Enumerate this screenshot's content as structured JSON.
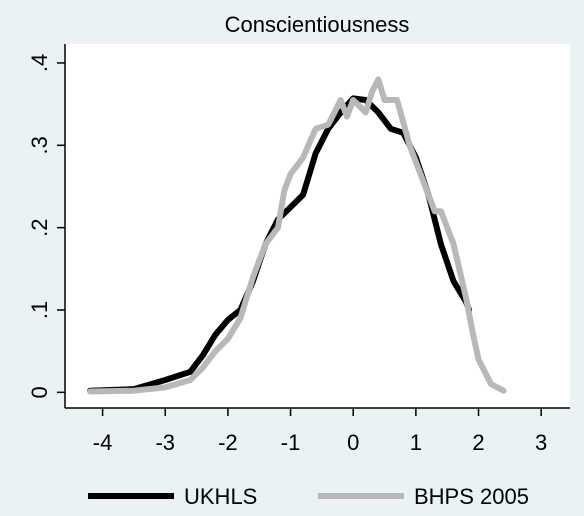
{
  "chart_data": {
    "type": "line",
    "title": "Conscientiousness",
    "series": [
      {
        "name": "UKHLS",
        "color": "#000000",
        "x": [
          -4.2,
          -3.5,
          -3,
          -2.6,
          -2.4,
          -2.2,
          -2,
          -1.8,
          -1.6,
          -1.4,
          -1.2,
          -1,
          -0.8,
          -0.6,
          -0.4,
          -0.2,
          0,
          0.2,
          0.4,
          0.6,
          0.8,
          1,
          1.2,
          1.4,
          1.6,
          1.8,
          1.85
        ],
        "values": [
          0.002,
          0.004,
          0.015,
          0.025,
          0.045,
          0.07,
          0.088,
          0.1,
          0.135,
          0.18,
          0.21,
          0.225,
          0.24,
          0.29,
          0.32,
          0.34,
          0.357,
          0.355,
          0.34,
          0.32,
          0.315,
          0.285,
          0.24,
          0.18,
          0.135,
          0.11,
          0.1
        ]
      },
      {
        "name": "BHPS 2005",
        "color": "#b8b8b8",
        "x": [
          -4.2,
          -3.5,
          -3,
          -2.6,
          -2.4,
          -2.2,
          -2,
          -1.8,
          -1.6,
          -1.4,
          -1.2,
          -1.1,
          -1,
          -0.8,
          -0.6,
          -0.4,
          -0.2,
          -0.1,
          0,
          0.2,
          0.3,
          0.4,
          0.5,
          0.7,
          0.9,
          1.1,
          1.3,
          1.4,
          1.6,
          1.8,
          1.9,
          2,
          2.2,
          2.4
        ],
        "values": [
          0.001,
          0.002,
          0.006,
          0.015,
          0.03,
          0.05,
          0.065,
          0.09,
          0.14,
          0.18,
          0.2,
          0.245,
          0.265,
          0.285,
          0.32,
          0.325,
          0.355,
          0.335,
          0.355,
          0.34,
          0.365,
          0.38,
          0.355,
          0.355,
          0.3,
          0.26,
          0.22,
          0.22,
          0.18,
          0.115,
          0.075,
          0.04,
          0.01,
          0.002
        ]
      }
    ],
    "xlim": [
      -4.6,
      3.46
    ],
    "ylim": [
      -0.019,
      0.423
    ],
    "xticks": [
      -4,
      -3,
      -2,
      -1,
      0,
      1,
      2,
      3
    ],
    "yticks": [
      {
        "value": 0,
        "label": "0"
      },
      {
        "value": 0.1,
        "label": ".1"
      },
      {
        "value": 0.2,
        "label": ".2"
      },
      {
        "value": 0.3,
        "label": ".3"
      },
      {
        "value": 0.4,
        "label": ".4"
      }
    ],
    "legend": "bottom"
  }
}
